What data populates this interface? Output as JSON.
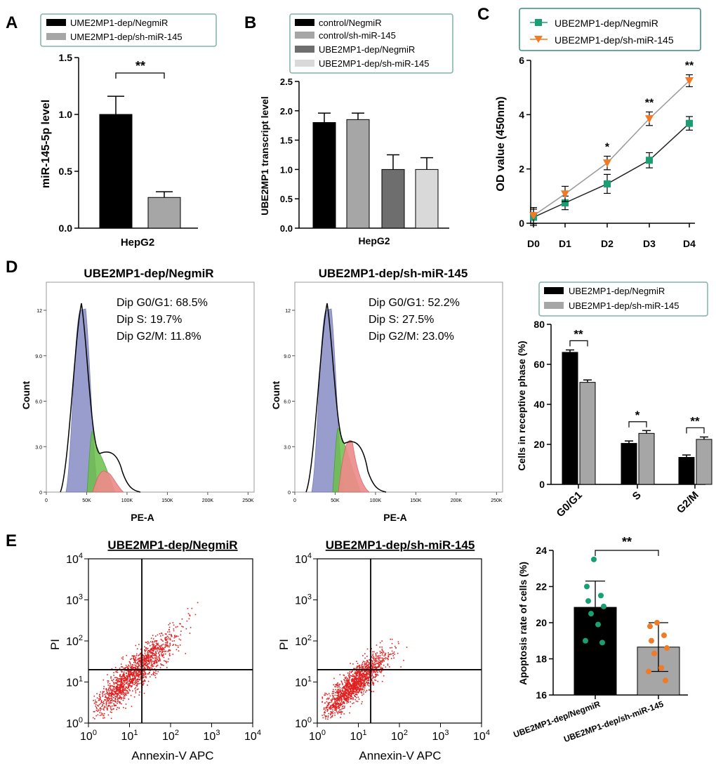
{
  "panels": {
    "A": "A",
    "B": "B",
    "C": "C",
    "D": "D",
    "E": "E"
  },
  "colors": {
    "black": "#000000",
    "gray": "#a6a6a6",
    "light_gray": "#d9d9d9",
    "dark_gray": "#6e6e6e",
    "green": "#1a9e73",
    "orange": "#f07a26",
    "red_dots": "#e02020",
    "hist_blue": "#8f93c9",
    "hist_green": "#6cc04a",
    "hist_red": "#ef8a8a"
  },
  "chart_data": [
    {
      "id": "A",
      "type": "bar",
      "categories": [
        "HepG2"
      ],
      "series": [
        {
          "name": "UME2MP1-dep/NegmiR",
          "values": [
            1.0
          ],
          "errors": [
            0.16
          ],
          "color": "#000000"
        },
        {
          "name": "UME2MP1-dep/sh-miR-145",
          "values": [
            0.27
          ],
          "errors": [
            0.05
          ],
          "color": "#a6a6a6"
        }
      ],
      "ylabel": "miR-145-5p level",
      "xlabel": "HepG2",
      "ylim": [
        0,
        1.5
      ],
      "yticks": [
        "0.0",
        "0.5",
        "1.0",
        "1.5"
      ],
      "significance": "**"
    },
    {
      "id": "B",
      "type": "bar",
      "categories": [
        "HepG2"
      ],
      "series": [
        {
          "name": "control/NegmiR",
          "values": [
            1.8
          ],
          "errors": [
            0.16
          ],
          "color": "#000000"
        },
        {
          "name": "control/sh-miR-145",
          "values": [
            1.85
          ],
          "errors": [
            0.11
          ],
          "color": "#a6a6a6"
        },
        {
          "name": "UBE2MP1-dep/NegmiR",
          "values": [
            1.0
          ],
          "errors": [
            0.25
          ],
          "color": "#6e6e6e"
        },
        {
          "name": "UBE2MP1-dep/sh-miR-145",
          "values": [
            1.0
          ],
          "errors": [
            0.2
          ],
          "color": "#d9d9d9"
        }
      ],
      "ylabel": "UBE2MP1 transcript level",
      "xlabel": "HepG2",
      "ylim": [
        0,
        2.5
      ],
      "yticks": [
        "0.0",
        "0.5",
        "1.0",
        "1.5",
        "2.0",
        "2.5"
      ]
    },
    {
      "id": "C",
      "type": "line",
      "x": [
        "D0",
        "D1",
        "D2",
        "D3",
        "D4"
      ],
      "series": [
        {
          "name": "UBE2MP1-dep/NegmiR",
          "values": [
            0.22,
            0.75,
            1.45,
            2.32,
            3.68
          ],
          "errors": [
            0.3,
            0.25,
            0.35,
            0.28,
            0.25
          ],
          "color": "#1a9e73",
          "marker": "square"
        },
        {
          "name": "UBE2MP1-dep/sh-miR-145",
          "values": [
            0.28,
            1.08,
            2.22,
            3.85,
            5.25
          ],
          "errors": [
            0.3,
            0.28,
            0.25,
            0.25,
            0.22
          ],
          "color": "#f07a26",
          "marker": "triangle-down"
        }
      ],
      "ylabel": "OD value (450nm)",
      "ylim": [
        0,
        6
      ],
      "yticks": [
        "0",
        "2",
        "4",
        "6"
      ],
      "significance": [
        "",
        "",
        "*",
        "**",
        "**"
      ]
    },
    {
      "id": "D-hist-1",
      "type": "histogram",
      "title": "UBE2MP1-dep/NegmiR",
      "annotations": [
        "Dip G0/G1: 68.5%",
        "Dip S: 19.7%",
        "Dip G2/M: 11.8%"
      ],
      "xlabel": "PE-A",
      "ylabel": "Count",
      "xticks": [
        "0",
        "50K",
        "100K",
        "150K",
        "200K",
        "250K"
      ],
      "yticks": [
        "0",
        "3.0",
        "6.0",
        "9.0",
        "12"
      ]
    },
    {
      "id": "D-hist-2",
      "type": "histogram",
      "title": "UBE2MP1-dep/sh-miR-145",
      "annotations": [
        "Dip G0/G1: 52.2%",
        "Dip S: 27.5%",
        "Dip G2/M: 23.0%"
      ],
      "xlabel": "PE-A",
      "ylabel": "Count",
      "xticks": [
        "0",
        "50K",
        "100K",
        "150K",
        "200K",
        "250K"
      ],
      "yticks": [
        "0",
        "3.0",
        "6.0",
        "9.0",
        "12"
      ]
    },
    {
      "id": "D-bar",
      "type": "bar",
      "categories": [
        "G0/G1",
        "S",
        "G2/M"
      ],
      "series": [
        {
          "name": "UBE2MP1-dep/NegmiR",
          "values": [
            66,
            20.5,
            13.5
          ],
          "errors": [
            1.2,
            1.2,
            1.2
          ],
          "color": "#000000"
        },
        {
          "name": "UBE2MP1-dep/sh-miR-145",
          "values": [
            51,
            25.5,
            22.5
          ],
          "errors": [
            1.2,
            1.4,
            1.2
          ],
          "color": "#a6a6a6"
        }
      ],
      "ylabel": "Cells in receptive phase (%)",
      "ylim": [
        0,
        80
      ],
      "yticks": [
        "0",
        "20",
        "40",
        "60",
        "80"
      ],
      "significance": [
        "**",
        "*",
        "**"
      ]
    },
    {
      "id": "E-scatter-1",
      "type": "scatter",
      "title": "UBE2MP1-dep/NegmiR",
      "xlabel": "Annexin-V APC",
      "ylabel": "PI",
      "xlim": [
        0,
        4
      ],
      "ylim": [
        0,
        4
      ],
      "gate_x": 1.3,
      "gate_y": 1.3
    },
    {
      "id": "E-scatter-2",
      "type": "scatter",
      "title": "UBE2MP1-dep/sh-miR-145",
      "xlabel": "Annexin-V APC",
      "ylabel": "PI",
      "xlim": [
        0,
        4
      ],
      "ylim": [
        0,
        4
      ],
      "gate_x": 1.3,
      "gate_y": 1.3
    },
    {
      "id": "E-bar",
      "type": "bar",
      "categories": [
        "UBE2MP1-dep/NegmiR",
        "UBE2MP1-dep/sh-miR-145"
      ],
      "values": [
        20.85,
        18.65
      ],
      "errors": [
        1.45,
        1.35
      ],
      "points": [
        [
          23.5,
          22.0,
          21.5,
          21.2,
          20.9,
          20.5,
          19.9,
          19.0,
          18.9
        ],
        [
          20.0,
          19.8,
          19.3,
          19.0,
          18.6,
          18.3,
          17.5,
          17.3,
          16.8
        ]
      ],
      "colors": [
        "#000000",
        "#a6a6a6"
      ],
      "point_colors": [
        "#1a9e73",
        "#f07a26"
      ],
      "ylabel": "Apoptosis rate of cells (%)",
      "ylim": [
        16,
        24
      ],
      "yticks": [
        "16",
        "18",
        "20",
        "22",
        "24"
      ],
      "significance": "**"
    }
  ]
}
